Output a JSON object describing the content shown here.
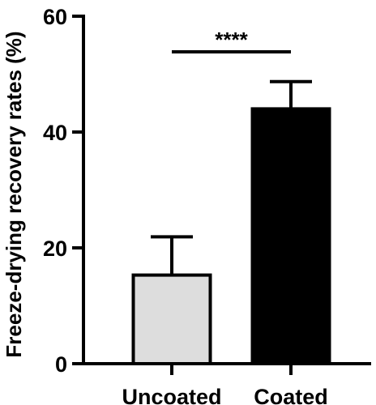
{
  "chart_data": {
    "type": "bar",
    "title": "",
    "xlabel": "",
    "ylabel": "Freeze-drying recovery rates (%)",
    "categories": [
      "Uncoated",
      "Coated"
    ],
    "values": [
      15.3,
      44.0
    ],
    "errors": [
      6.6,
      4.7
    ],
    "bar_colors": [
      "#dddddd",
      "#000000"
    ],
    "ylim": [
      0,
      60
    ],
    "yticks": [
      0,
      20,
      40,
      60
    ],
    "yticks_labels": [
      "0",
      "20",
      "40",
      "60"
    ],
    "grid": false,
    "legend": "none",
    "significance": {
      "between": [
        "Uncoated",
        "Coated"
      ],
      "label": "****"
    }
  }
}
